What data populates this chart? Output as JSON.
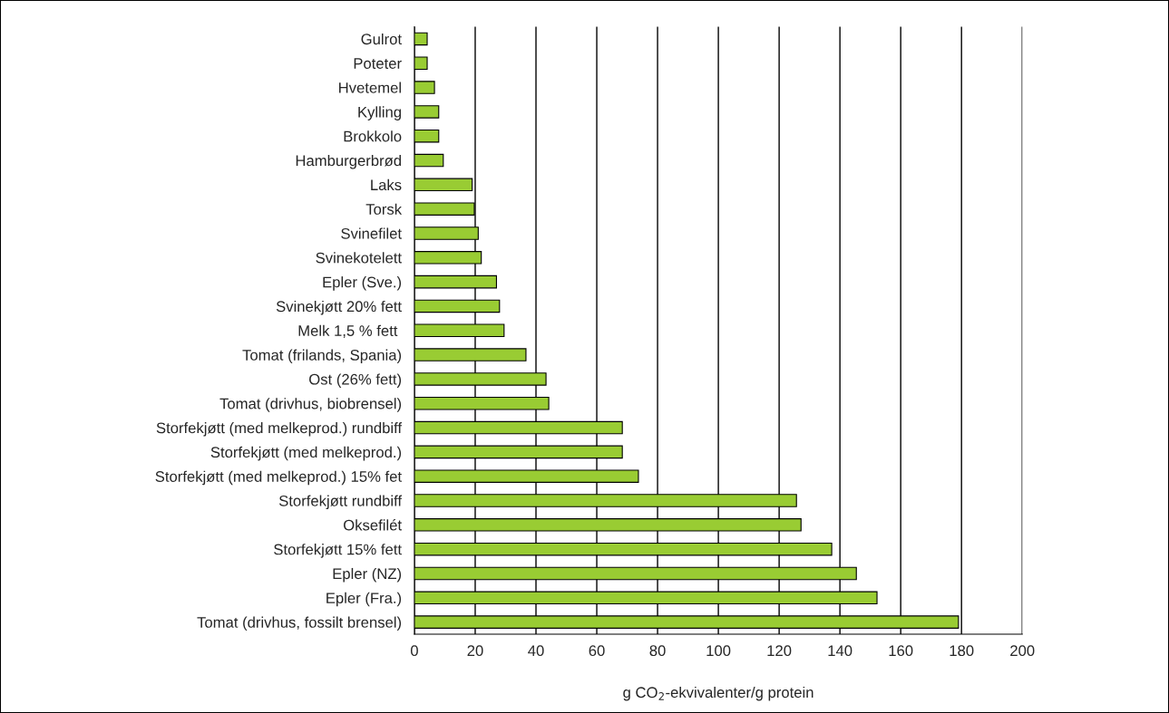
{
  "chart_data": {
    "type": "bar",
    "orientation": "horizontal",
    "categories": [
      "Gulrot",
      "Poteter",
      "Hvetemel",
      "Kylling",
      "Brokkolo",
      "Hamburgerbrød",
      "Laks",
      "Torsk",
      "Svinefilet",
      "Svinekotelett",
      "Epler (Sve.)",
      "Svinekjøtt 20% fett",
      "Melk 1,5 % fett ",
      "Tomat (frilands, Spania)",
      "Ost (26% fett)",
      "Tomat (drivhus, biobrensel)",
      "Storfekjøtt (med melkeprod.) rundbiff",
      "Storfekjøtt (med melkeprod.)",
      "Storfekjøtt (med melkeprod.) 15% fet",
      "Storfekjøtt rundbiff",
      "Oksefilét",
      "Storfekjøtt 15% fett",
      "Epler (NZ)",
      "Epler (Fra.)",
      "Tomat (drivhus, fossilt brensel)"
    ],
    "values": [
      4.2,
      4.2,
      6.6,
      8,
      8,
      9.5,
      19,
      19.7,
      21,
      22,
      27,
      28,
      29.5,
      36.7,
      43.3,
      44.2,
      68.4,
      68.4,
      73.7,
      125.7,
      127.2,
      137.3,
      145.4,
      152.2,
      179
    ],
    "color": "#99cc33",
    "xlim": [
      0,
      200
    ],
    "xticks": [
      0,
      20,
      40,
      60,
      80,
      100,
      120,
      140,
      160,
      180,
      200
    ],
    "xlabel": "g CO$_{2}$-ekvivalenter/g protein",
    "grid": "x"
  }
}
